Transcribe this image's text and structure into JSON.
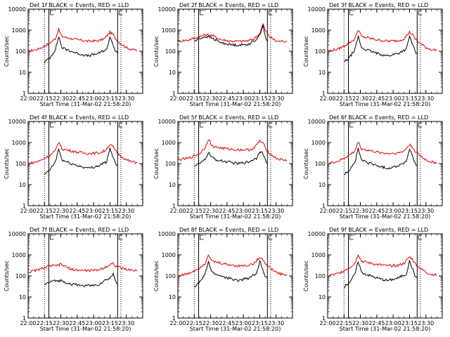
{
  "figure": {
    "xlabel": "Start Time (31-Mar-02 21:58:20)",
    "ylabel": "Counts/sec",
    "x_ticks": [
      "22:00",
      "22:15",
      "22:30",
      "22:45",
      "23:00",
      "23:15",
      "23:30"
    ],
    "y_ticks": [
      "1",
      "10",
      "100",
      "1000",
      "10000"
    ],
    "colors": {
      "events": "#000000",
      "lld": "#e00000"
    }
  },
  "chart_data": [
    {
      "type": "line",
      "title": "Det 1f BLACK = Events, RED = LLD",
      "xlim": [
        0,
        105
      ],
      "ylim": [
        1,
        10000
      ],
      "yscale": "log",
      "vlines": {
        "dotted": [
          15,
          85
        ],
        "solid": [
          19,
          82
        ]
      },
      "series": [
        {
          "color": "#e00000",
          "x": [
            0,
            10,
            20,
            25,
            28,
            31,
            35,
            45,
            55,
            65,
            70,
            75,
            78,
            80,
            84,
            90,
            95,
            100
          ],
          "y": [
            100,
            130,
            250,
            400,
            1100,
            500,
            450,
            350,
            300,
            320,
            400,
            800,
            600,
            400,
            250,
            150,
            120,
            110
          ]
        },
        {
          "color": "#000000",
          "x": [
            15,
            20,
            25,
            28,
            31,
            35,
            45,
            55,
            65,
            68,
            72,
            75,
            78,
            80,
            82
          ],
          "y": [
            30,
            50,
            120,
            500,
            150,
            120,
            80,
            60,
            80,
            100,
            120,
            500,
            200,
            100,
            80
          ]
        }
      ]
    },
    {
      "type": "line",
      "title": "Det 2f BLACK = Events, RED = LLD",
      "xlim": [
        0,
        105
      ],
      "ylim": [
        1,
        10000
      ],
      "yscale": "log",
      "vlines": {
        "dotted": [
          15,
          85
        ],
        "solid": [
          19,
          82
        ]
      },
      "series": [
        {
          "color": "#e00000",
          "x": [
            0,
            10,
            20,
            25,
            30,
            40,
            50,
            60,
            65,
            70,
            75,
            78,
            80,
            84,
            90,
            100
          ],
          "y": [
            300,
            350,
            500,
            600,
            600,
            350,
            300,
            300,
            320,
            400,
            700,
            2000,
            1000,
            500,
            300,
            300
          ]
        },
        {
          "color": "#000000",
          "x": [
            15,
            20,
            25,
            30,
            40,
            50,
            60,
            65,
            70,
            75,
            78,
            80,
            82
          ],
          "y": [
            300,
            400,
            500,
            450,
            250,
            200,
            200,
            220,
            300,
            600,
            1800,
            500,
            300
          ]
        }
      ]
    },
    {
      "type": "line",
      "title": "Det 3f BLACK = Events, RED = LLD",
      "xlim": [
        0,
        105
      ],
      "ylim": [
        1,
        10000
      ],
      "yscale": "log",
      "vlines": {
        "dotted": [
          15,
          85
        ],
        "solid": [
          19,
          82
        ]
      },
      "series": [
        {
          "color": "#e00000",
          "x": [
            0,
            10,
            20,
            25,
            28,
            31,
            35,
            45,
            55,
            65,
            70,
            75,
            78,
            80,
            84,
            90,
            95,
            100
          ],
          "y": [
            100,
            130,
            250,
            400,
            1100,
            500,
            450,
            350,
            300,
            320,
            400,
            800,
            600,
            400,
            250,
            150,
            120,
            110
          ]
        },
        {
          "color": "#000000",
          "x": [
            15,
            20,
            25,
            28,
            31,
            35,
            45,
            55,
            65,
            68,
            72,
            75,
            78,
            80,
            82
          ],
          "y": [
            30,
            50,
            120,
            500,
            150,
            120,
            80,
            60,
            80,
            100,
            120,
            500,
            200,
            100,
            80
          ]
        }
      ]
    },
    {
      "type": "line",
      "title": "Det 4f BLACK = Events, RED = LLD",
      "xlim": [
        0,
        105
      ],
      "ylim": [
        1,
        10000
      ],
      "yscale": "log",
      "vlines": {
        "dotted": [
          15,
          85
        ],
        "solid": [
          19,
          82
        ]
      },
      "series": [
        {
          "color": "#e00000",
          "x": [
            0,
            10,
            20,
            25,
            28,
            31,
            35,
            45,
            55,
            65,
            70,
            75,
            78,
            80,
            84,
            90,
            95,
            100
          ],
          "y": [
            100,
            130,
            250,
            400,
            1100,
            500,
            450,
            350,
            300,
            320,
            400,
            800,
            600,
            400,
            250,
            150,
            120,
            110
          ]
        },
        {
          "color": "#000000",
          "x": [
            15,
            20,
            25,
            28,
            31,
            35,
            45,
            55,
            65,
            68,
            72,
            75,
            78,
            80,
            82
          ],
          "y": [
            30,
            50,
            120,
            500,
            150,
            120,
            80,
            60,
            80,
            100,
            120,
            500,
            200,
            100,
            80
          ]
        }
      ]
    },
    {
      "type": "line",
      "title": "Det 5f BLACK = Events, RED = LLD",
      "xlim": [
        0,
        105
      ],
      "ylim": [
        1,
        10000
      ],
      "yscale": "log",
      "vlines": {
        "dotted": [
          15,
          85
        ],
        "solid": [
          19,
          82
        ]
      },
      "series": [
        {
          "color": "#e00000",
          "x": [
            0,
            10,
            20,
            25,
            28,
            31,
            35,
            45,
            55,
            65,
            70,
            75,
            78,
            80,
            84,
            90,
            95,
            100
          ],
          "y": [
            150,
            180,
            300,
            600,
            1500,
            700,
            600,
            500,
            450,
            450,
            550,
            1200,
            900,
            600,
            300,
            180,
            150,
            140
          ]
        },
        {
          "color": "#000000",
          "x": [
            15,
            20,
            25,
            28,
            31,
            35,
            45,
            55,
            65,
            68,
            72,
            75,
            78,
            80,
            82
          ],
          "y": [
            80,
            100,
            150,
            350,
            200,
            150,
            120,
            100,
            120,
            150,
            180,
            400,
            300,
            150,
            100
          ]
        }
      ]
    },
    {
      "type": "line",
      "title": "Det 6f BLACK = Events, RED = LLD",
      "xlim": [
        0,
        105
      ],
      "ylim": [
        1,
        10000
      ],
      "yscale": "log",
      "vlines": {
        "dotted": [
          15,
          85
        ],
        "solid": [
          19,
          82
        ]
      },
      "series": [
        {
          "color": "#e00000",
          "x": [
            0,
            10,
            20,
            25,
            28,
            31,
            35,
            45,
            55,
            65,
            70,
            75,
            78,
            80,
            84,
            90,
            95,
            100
          ],
          "y": [
            100,
            130,
            250,
            400,
            1100,
            500,
            450,
            350,
            300,
            320,
            400,
            800,
            600,
            400,
            250,
            150,
            120,
            110
          ]
        },
        {
          "color": "#000000",
          "x": [
            15,
            20,
            25,
            28,
            31,
            35,
            45,
            55,
            65,
            68,
            72,
            75,
            78,
            80,
            82
          ],
          "y": [
            30,
            50,
            120,
            500,
            150,
            120,
            80,
            60,
            80,
            100,
            120,
            500,
            200,
            100,
            80
          ]
        }
      ]
    },
    {
      "type": "line",
      "title": "Det 7f BLACK = Events, RED = LLD",
      "xlim": [
        0,
        105
      ],
      "ylim": [
        1,
        10000
      ],
      "yscale": "log",
      "vlines": {
        "dotted": [
          15,
          85
        ],
        "solid": [
          19,
          82
        ]
      },
      "series": [
        {
          "color": "#e00000",
          "x": [
            0,
            10,
            20,
            25,
            30,
            40,
            50,
            60,
            65,
            70,
            75,
            78,
            80,
            84,
            90,
            100
          ],
          "y": [
            150,
            200,
            300,
            300,
            350,
            200,
            180,
            180,
            200,
            250,
            350,
            400,
            300,
            250,
            200,
            180
          ]
        },
        {
          "color": "#000000",
          "x": [
            15,
            20,
            25,
            30,
            40,
            50,
            60,
            65,
            70,
            75,
            78,
            80,
            82
          ],
          "y": [
            40,
            50,
            60,
            60,
            40,
            35,
            35,
            40,
            60,
            80,
            120,
            60,
            40
          ]
        }
      ]
    },
    {
      "type": "line",
      "title": "Det 8f BLACK = Events, RED = LLD",
      "xlim": [
        0,
        105
      ],
      "ylim": [
        1,
        10000
      ],
      "yscale": "log",
      "vlines": {
        "dotted": [
          15,
          85
        ],
        "solid": [
          19,
          82
        ]
      },
      "series": [
        {
          "color": "#e00000",
          "x": [
            0,
            10,
            20,
            25,
            28,
            31,
            35,
            45,
            55,
            65,
            70,
            75,
            78,
            80,
            84,
            90,
            95,
            100
          ],
          "y": [
            100,
            130,
            250,
            400,
            1100,
            500,
            450,
            350,
            300,
            320,
            400,
            800,
            600,
            400,
            250,
            150,
            120,
            110
          ]
        },
        {
          "color": "#000000",
          "x": [
            15,
            20,
            25,
            28,
            31,
            35,
            45,
            55,
            65,
            68,
            72,
            75,
            78,
            80,
            82
          ],
          "y": [
            30,
            50,
            120,
            500,
            150,
            120,
            80,
            60,
            80,
            100,
            120,
            500,
            200,
            100,
            80
          ]
        }
      ]
    },
    {
      "type": "line",
      "title": "Det 9f BLACK = Events, RED = LLD",
      "xlim": [
        0,
        105
      ],
      "ylim": [
        1,
        10000
      ],
      "yscale": "log",
      "vlines": {
        "dotted": [
          15,
          85
        ],
        "solid": [
          19,
          82
        ]
      },
      "series": [
        {
          "color": "#e00000",
          "x": [
            0,
            10,
            20,
            25,
            28,
            31,
            35,
            45,
            55,
            65,
            70,
            75,
            78,
            80,
            84,
            90,
            95,
            100
          ],
          "y": [
            100,
            130,
            250,
            400,
            1100,
            500,
            450,
            350,
            300,
            320,
            400,
            800,
            600,
            400,
            250,
            150,
            120,
            110
          ]
        },
        {
          "color": "#000000",
          "x": [
            15,
            20,
            25,
            28,
            31,
            35,
            45,
            55,
            65,
            68,
            72,
            75,
            78,
            80,
            82
          ],
          "y": [
            30,
            50,
            120,
            500,
            150,
            120,
            80,
            60,
            80,
            100,
            120,
            500,
            200,
            100,
            80
          ]
        }
      ]
    }
  ]
}
